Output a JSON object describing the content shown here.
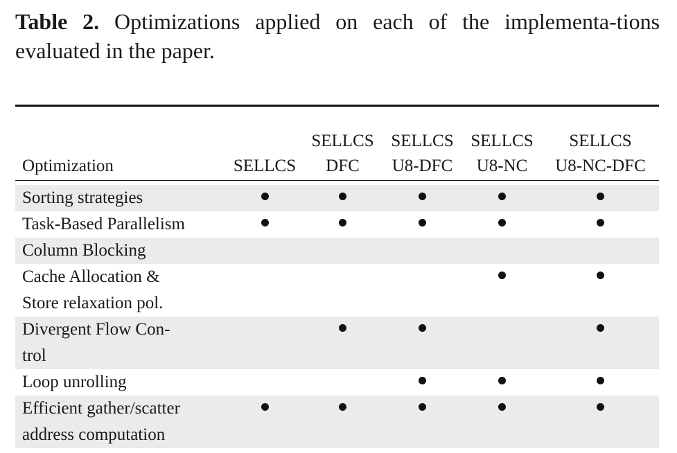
{
  "caption": {
    "label": "Table 2.",
    "text": "Optimizations applied on each of the implementa-tions evaluated in the paper."
  },
  "table": {
    "columns": [
      {
        "line1": "",
        "line2": "Optimization"
      },
      {
        "line1": "",
        "line2": "SELLCS"
      },
      {
        "line1": "SELLCS",
        "line2": "DFC"
      },
      {
        "line1": "SELLCS",
        "line2": "U8-DFC"
      },
      {
        "line1": "SELLCS",
        "line2": "U8-NC"
      },
      {
        "line1": "SELLCS",
        "line2": "U8-NC-DFC"
      }
    ],
    "rows": [
      {
        "label": [
          "Sorting strategies"
        ],
        "marks": [
          true,
          true,
          true,
          true,
          true
        ]
      },
      {
        "label": [
          "Task-Based Parallelism"
        ],
        "marks": [
          true,
          true,
          true,
          true,
          true
        ]
      },
      {
        "label": [
          "Column Blocking"
        ],
        "marks": [
          false,
          false,
          false,
          false,
          false
        ]
      },
      {
        "label": [
          "Cache Allocation &",
          "Store relaxation pol."
        ],
        "marks": [
          false,
          false,
          false,
          true,
          true
        ]
      },
      {
        "label": [
          "Divergent Flow Con-",
          "trol"
        ],
        "marks": [
          false,
          true,
          true,
          false,
          true
        ]
      },
      {
        "label": [
          "Loop unrolling"
        ],
        "marks": [
          false,
          false,
          true,
          true,
          true
        ]
      },
      {
        "label": [
          "Efficient gather/scatter",
          "address computation"
        ],
        "marks": [
          true,
          true,
          true,
          true,
          true
        ]
      }
    ],
    "mark_symbol": "●"
  }
}
